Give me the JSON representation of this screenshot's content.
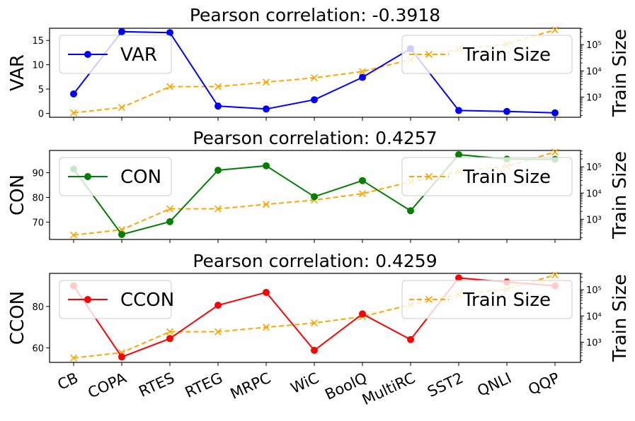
{
  "chart_data": [
    {
      "type": "line",
      "title": "Pearson correlation: -0.3918",
      "ylabel": "VAR",
      "y2label": "Train Size",
      "categories": [
        "CB",
        "COPA",
        "RTES",
        "RTEG",
        "MRPC",
        "WiC",
        "BoolQ",
        "MultiRC",
        "SST2",
        "QNLI",
        "QQP"
      ],
      "ylim": [
        -0.8,
        17.5
      ],
      "yticks": [
        0,
        5,
        10,
        15
      ],
      "y2log": true,
      "y2ticks": [
        {
          "label": "10³",
          "value": 1000
        },
        {
          "label": "10⁴",
          "value": 10000
        },
        {
          "label": "10⁵",
          "value": 100000
        }
      ],
      "series": [
        {
          "name": "VAR",
          "axis": "left",
          "color": "#0000ff",
          "marker": "circle",
          "style": "solid",
          "values": [
            4.0,
            16.8,
            16.6,
            1.5,
            0.9,
            2.8,
            7.4,
            13.3,
            0.6,
            0.4,
            0.1
          ]
        }
      ],
      "legend": {
        "left": "VAR",
        "right": "Train Size",
        "left_placement": "upper-left",
        "right_placement": "upper-right"
      }
    },
    {
      "type": "line",
      "title": "Pearson correlation: 0.4257",
      "ylabel": "CON",
      "y2label": "Train Size",
      "categories": [
        "CB",
        "COPA",
        "RTES",
        "RTEG",
        "MRPC",
        "WiC",
        "BoolQ",
        "MultiRC",
        "SST2",
        "QNLI",
        "QQP"
      ],
      "ylim": [
        63,
        99
      ],
      "yticks": [
        70,
        80,
        90
      ],
      "y2log": true,
      "y2ticks": [
        {
          "label": "10³",
          "value": 1000
        },
        {
          "label": "10⁴",
          "value": 10000
        },
        {
          "label": "10⁵",
          "value": 100000
        }
      ],
      "series": [
        {
          "name": "CON",
          "axis": "left",
          "color": "#008000",
          "marker": "circle",
          "style": "solid",
          "values": [
            91.5,
            65.0,
            70.2,
            91.0,
            92.8,
            80.3,
            86.8,
            74.6,
            97.3,
            95.5,
            95.4
          ]
        }
      ],
      "legend": {
        "left": "CON",
        "right": "Train Size",
        "left_placement": "upper-left",
        "right_placement": "upper-right"
      }
    },
    {
      "type": "line",
      "title": "Pearson correlation: 0.4259",
      "ylabel": "CCON",
      "y2label": "Train Size",
      "categories": [
        "CB",
        "COPA",
        "RTES",
        "RTEG",
        "MRPC",
        "WiC",
        "BoolQ",
        "MultiRC",
        "SST2",
        "QNLI",
        "QQP"
      ],
      "ylim": [
        53,
        96
      ],
      "yticks": [
        60,
        80
      ],
      "y2log": true,
      "y2ticks": [
        {
          "label": "10³",
          "value": 1000
        },
        {
          "label": "10⁴",
          "value": 10000
        },
        {
          "label": "10⁵",
          "value": 100000
        }
      ],
      "series": [
        {
          "name": "CCON",
          "axis": "left",
          "color": "#ff0000",
          "marker": "circle",
          "style": "solid",
          "values": [
            90.0,
            55.6,
            64.5,
            80.6,
            86.8,
            58.8,
            76.4,
            64.0,
            93.8,
            91.8,
            90.0
          ]
        }
      ],
      "legend": {
        "left": "CCON",
        "right": "Train Size",
        "left_placement": "upper-left",
        "right_placement": "upper-right"
      }
    }
  ],
  "train_size": {
    "name": "Train Size",
    "color": "#ffa500",
    "marker": "x",
    "style": "dashed",
    "values": [
      250,
      400,
      2500,
      2500,
      3700,
      5400,
      9400,
      27000,
      67000,
      105000,
      364000
    ]
  },
  "y2_range": [
    170,
    420000
  ]
}
